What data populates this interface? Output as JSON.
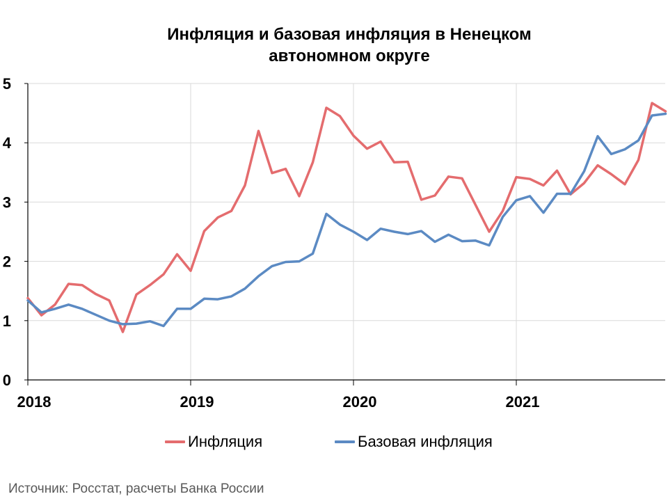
{
  "chart_data": {
    "type": "line",
    "title_lines": [
      "Инфляция и базовая инфляция в Ненецком",
      "автономном округе"
    ],
    "xlabel": "",
    "ylabel": "",
    "ylim": [
      0,
      5
    ],
    "yticks": [
      "0",
      "1",
      "2",
      "3",
      "4",
      "5"
    ],
    "x_start": "2018-01",
    "x_end": "2021-12",
    "xtick_labels": [
      "2018",
      "2019",
      "2020",
      "2021"
    ],
    "grid": true,
    "legend_position": "bottom",
    "series": [
      {
        "name": "Инфляция",
        "color": "#e46c6e",
        "x": [
          "2018-01",
          "2018-02",
          "2018-03",
          "2018-04",
          "2018-05",
          "2018-06",
          "2018-07",
          "2018-08",
          "2018-09",
          "2018-10",
          "2018-11",
          "2018-12",
          "2019-01",
          "2019-02",
          "2019-03",
          "2019-04",
          "2019-05",
          "2019-06",
          "2019-07",
          "2019-08",
          "2019-09",
          "2019-10",
          "2019-11",
          "2019-12",
          "2020-01",
          "2020-02",
          "2020-03",
          "2020-04",
          "2020-05",
          "2020-06",
          "2020-07",
          "2020-08",
          "2020-09",
          "2020-10",
          "2020-11",
          "2020-12",
          "2021-01",
          "2021-02",
          "2021-03",
          "2021-04",
          "2021-05",
          "2021-06",
          "2021-07",
          "2021-08",
          "2021-09",
          "2021-10",
          "2021-11",
          "2021-12"
        ],
        "values": [
          1.38,
          1.09,
          1.27,
          1.62,
          1.6,
          1.45,
          1.34,
          0.81,
          1.44,
          1.6,
          1.78,
          2.12,
          1.84,
          2.51,
          2.74,
          2.85,
          3.28,
          4.2,
          3.49,
          3.56,
          3.1,
          3.67,
          4.59,
          4.45,
          4.12,
          3.9,
          4.02,
          3.67,
          3.68,
          3.04,
          3.11,
          3.43,
          3.4,
          2.95,
          2.5,
          2.85,
          3.42,
          3.39,
          3.28,
          3.53,
          3.13,
          3.32,
          3.62,
          3.47,
          3.3,
          3.71,
          4.67,
          4.53
        ]
      },
      {
        "name": "Базовая инфляция",
        "color": "#5b8ac3",
        "x": [
          "2018-01",
          "2018-02",
          "2018-03",
          "2018-04",
          "2018-05",
          "2018-06",
          "2018-07",
          "2018-08",
          "2018-09",
          "2018-10",
          "2018-11",
          "2018-12",
          "2019-01",
          "2019-02",
          "2019-03",
          "2019-04",
          "2019-05",
          "2019-06",
          "2019-07",
          "2019-08",
          "2019-09",
          "2019-10",
          "2019-11",
          "2019-12",
          "2020-01",
          "2020-02",
          "2020-03",
          "2020-04",
          "2020-05",
          "2020-06",
          "2020-07",
          "2020-08",
          "2020-09",
          "2020-10",
          "2020-11",
          "2020-12",
          "2021-01",
          "2021-02",
          "2021-03",
          "2021-04",
          "2021-05",
          "2021-06",
          "2021-07",
          "2021-08",
          "2021-09",
          "2021-10",
          "2021-11",
          "2021-12"
        ],
        "values": [
          1.34,
          1.14,
          1.2,
          1.27,
          1.2,
          1.1,
          1.0,
          0.94,
          0.95,
          0.99,
          0.91,
          1.2,
          1.2,
          1.37,
          1.36,
          1.41,
          1.54,
          1.75,
          1.92,
          1.99,
          2.0,
          2.13,
          2.8,
          2.62,
          2.5,
          2.36,
          2.55,
          2.5,
          2.46,
          2.51,
          2.33,
          2.45,
          2.34,
          2.35,
          2.27,
          2.75,
          3.03,
          3.1,
          2.82,
          3.14,
          3.14,
          3.52,
          4.11,
          3.81,
          3.89,
          4.04,
          4.46,
          4.49
        ]
      }
    ]
  },
  "source_text": "Источник: Росстат, расчеты Банка России"
}
